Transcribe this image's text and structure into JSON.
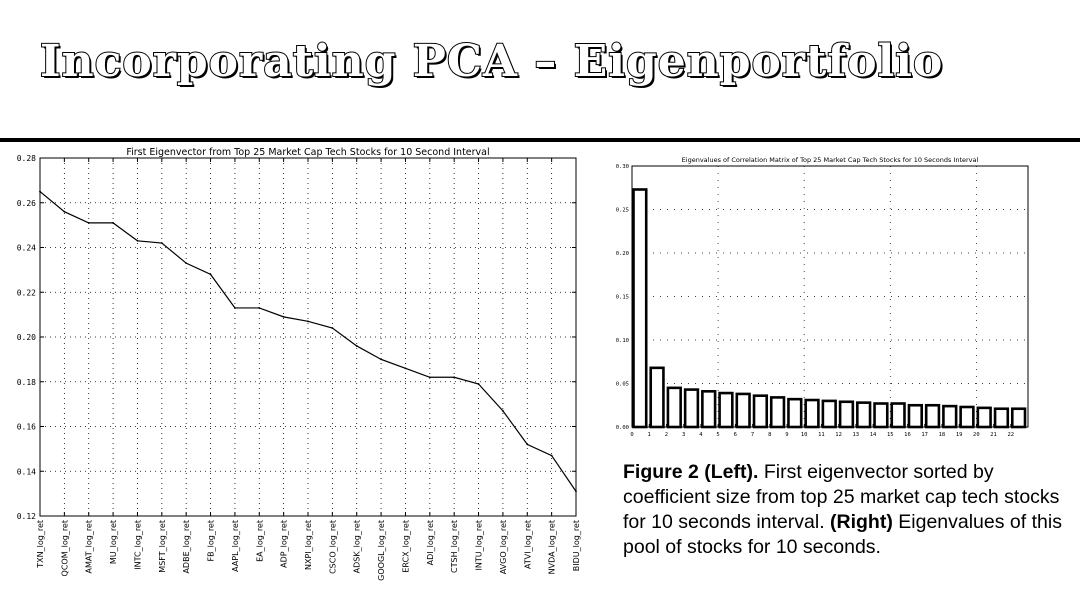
{
  "slide": {
    "title": "Incorporating  PCA – Eigenportfolio"
  },
  "caption": {
    "left_label": "Figure 2 (Left).",
    "left_text": " First eigenvector sorted by coefficient size from top 25 market cap tech stocks for 10 seconds interval. ",
    "right_label": "(Right)",
    "right_text": " Eigenvalues of this pool of stocks for 10 seconds."
  },
  "chart_data": [
    {
      "type": "line",
      "title": "First Eigenvector from Top 25 Market Cap Tech Stocks for 10 Second Interval",
      "xlabel": "",
      "ylabel": "",
      "categories": [
        "TXN_log_ret",
        "QCOM_log_ret",
        "AMAT_log_ret",
        "MU_log_ret",
        "INTC_log_ret",
        "MSFT_log_ret",
        "ADBE_log_ret",
        "FB_log_ret",
        "AAPL_log_ret",
        "EA_log_ret",
        "ADP_log_ret",
        "NXPI_log_ret",
        "CSCO_log_ret",
        "ADSK_log_ret",
        "GOOGL_log_ret",
        "ERCX_log_ret",
        "ADI_log_ret",
        "CTSH_log_ret",
        "INTU_log_ret",
        "AVGO_log_ret",
        "ATVI_log_ret",
        "NVDA_log_ret",
        "BIDU_log_ret"
      ],
      "series": [
        {
          "values": [
            0.265,
            0.256,
            0.251,
            0.251,
            0.243,
            0.242,
            0.233,
            0.228,
            0.213,
            0.213,
            0.209,
            0.207,
            0.204,
            0.196,
            0.19,
            0.186,
            0.182,
            0.182,
            0.179,
            0.167,
            0.152,
            0.147,
            0.131
          ]
        }
      ],
      "yticks": [
        "0.28",
        "0.26",
        "0.24",
        "0.22",
        "0.20",
        "0.18",
        "0.16",
        "0.14",
        "0.12"
      ],
      "ylim": [
        0.12,
        0.28
      ],
      "grid": true,
      "color": "#000000"
    },
    {
      "type": "bar",
      "title": "Eigenvalues of Correlation Matrix of Top 25 Market Cap Tech Stocks for 10 Seconds Interval",
      "xlabel": "",
      "ylabel": "",
      "categories": [
        "0",
        "1",
        "2",
        "3",
        "4",
        "5",
        "6",
        "7",
        "8",
        "9",
        "10",
        "11",
        "12",
        "13",
        "14",
        "15",
        "16",
        "17",
        "18",
        "19",
        "20",
        "21",
        "22"
      ],
      "values": [
        0.273,
        0.068,
        0.045,
        0.043,
        0.041,
        0.039,
        0.038,
        0.036,
        0.034,
        0.032,
        0.031,
        0.03,
        0.029,
        0.028,
        0.027,
        0.027,
        0.025,
        0.025,
        0.024,
        0.023,
        0.022,
        0.021,
        0.021
      ],
      "yticks": [
        "0.00",
        "0.05",
        "0.10",
        "0.15",
        "0.20",
        "0.25",
        "0.30"
      ],
      "ylim": [
        0,
        0.3
      ],
      "grid": true,
      "color": "#000000"
    }
  ]
}
